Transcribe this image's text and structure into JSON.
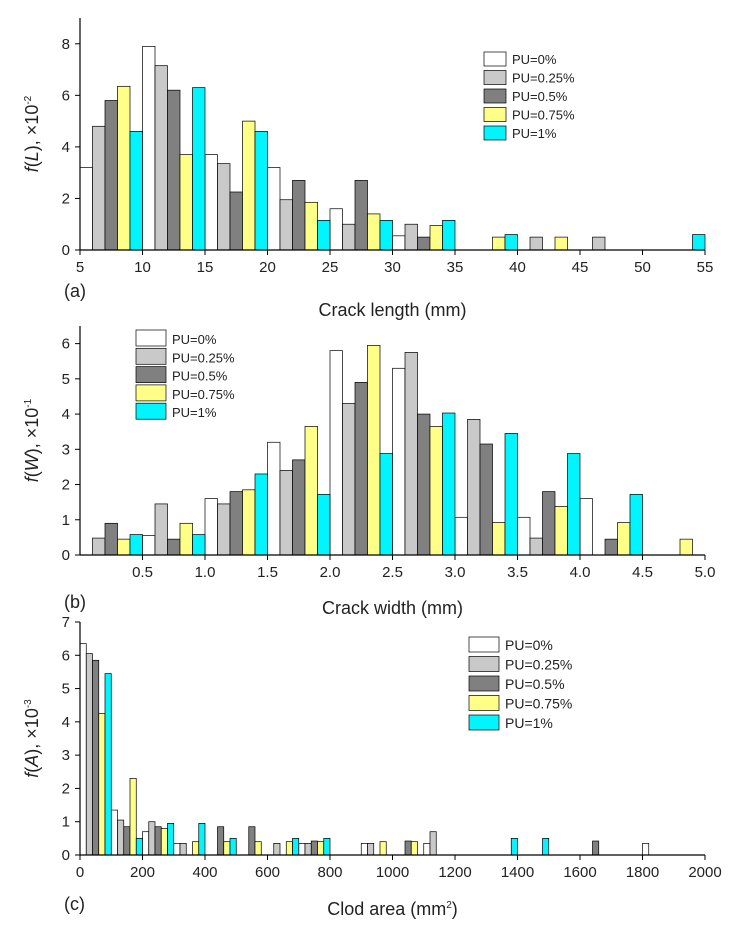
{
  "colors": {
    "PU=0%": "#ffffff",
    "PU=0.25%": "#c9c9c9",
    "PU=0.5%": "#808080",
    "PU=0.75%": "#ffff88",
    "PU=1%": "#00f5ff"
  },
  "chart_data": [
    {
      "type": "bar",
      "panel_label": "(a)",
      "xlabel": "Crack length (mm)",
      "ylabel_func": "f",
      "ylabel_var": "L",
      "ylabel_mult": "×10",
      "ylabel_exp": "-2",
      "xlim": [
        5,
        55
      ],
      "ylim": [
        0,
        9
      ],
      "xticks": [
        5,
        10,
        15,
        20,
        25,
        30,
        35,
        40,
        45,
        50,
        55
      ],
      "yticks": [
        0,
        2,
        4,
        6,
        8
      ],
      "legend_position": "top-right",
      "bin_width": 5,
      "categories": [
        7.5,
        12.5,
        17.5,
        22.5,
        27.5,
        32.5,
        37.5,
        42.5,
        47.5,
        52.5
      ],
      "series": [
        {
          "name": "PU=0%",
          "values": [
            3.2,
            7.9,
            3.7,
            3.2,
            1.6,
            0.55,
            0,
            0,
            0,
            0
          ]
        },
        {
          "name": "PU=0.25%",
          "values": [
            4.8,
            7.15,
            3.35,
            1.95,
            1.0,
            1.0,
            0,
            0.5,
            0.5,
            0
          ]
        },
        {
          "name": "PU=0.5%",
          "values": [
            5.8,
            6.2,
            2.25,
            2.7,
            2.7,
            0.5,
            0,
            0,
            0,
            0
          ]
        },
        {
          "name": "PU=0.75%",
          "values": [
            6.35,
            3.7,
            5.0,
            1.85,
            1.4,
            0.95,
            0.5,
            0.5,
            0,
            0
          ]
        },
        {
          "name": "PU=1%",
          "values": [
            4.6,
            6.3,
            4.6,
            1.15,
            1.15,
            1.15,
            0.6,
            0,
            0,
            0.6
          ]
        }
      ]
    },
    {
      "type": "bar",
      "panel_label": "(b)",
      "xlabel": "Crack width (mm)",
      "ylabel_func": "f",
      "ylabel_var": "W",
      "ylabel_mult": "×10",
      "ylabel_exp": "-1",
      "xlim": [
        0,
        5
      ],
      "ylim": [
        0,
        6.5
      ],
      "xticks": [
        0.5,
        1.0,
        1.5,
        2.0,
        2.5,
        3.0,
        3.5,
        4.0,
        4.5,
        5.0
      ],
      "yticks": [
        0,
        1,
        2,
        3,
        4,
        5,
        6
      ],
      "legend_position": "top-left",
      "bin_width": 0.5,
      "categories": [
        0.25,
        0.75,
        1.25,
        1.75,
        2.25,
        2.75,
        3.25,
        3.75,
        4.25,
        4.75
      ],
      "series": [
        {
          "name": "PU=0%",
          "values": [
            0,
            0.55,
            1.6,
            3.2,
            5.8,
            5.3,
            1.07,
            1.07,
            1.6,
            0
          ]
        },
        {
          "name": "PU=0.25%",
          "values": [
            0.48,
            1.45,
            1.45,
            2.4,
            4.3,
            5.75,
            3.85,
            0.48,
            0,
            0
          ]
        },
        {
          "name": "PU=0.5%",
          "values": [
            0.9,
            0.45,
            1.8,
            2.7,
            4.9,
            4.0,
            3.15,
            1.8,
            0.45,
            0
          ]
        },
        {
          "name": "PU=0.75%",
          "values": [
            0.45,
            0.9,
            1.85,
            3.65,
            5.95,
            3.65,
            0.92,
            1.38,
            0.92,
            0.45
          ]
        },
        {
          "name": "PU=1%",
          "values": [
            0.58,
            0.58,
            2.3,
            1.72,
            2.88,
            4.03,
            3.45,
            2.88,
            1.72,
            0
          ]
        }
      ]
    },
    {
      "type": "bar",
      "panel_label": "(c)",
      "xlabel": "Clod area (mm",
      "xlabel_exp": "2",
      "xlabel_tail": ")",
      "ylabel_func": "f",
      "ylabel_var": "A",
      "ylabel_mult": "×10",
      "ylabel_exp": "-3",
      "xlim": [
        0,
        2000
      ],
      "ylim": [
        0,
        7
      ],
      "xticks": [
        0,
        200,
        400,
        600,
        800,
        1000,
        1200,
        1400,
        1600,
        1800,
        2000
      ],
      "yticks": [
        0,
        1,
        2,
        3,
        4,
        5,
        6,
        7
      ],
      "legend_position": "top-right",
      "bin_width": 100,
      "categories": [
        50,
        150,
        250,
        350,
        450,
        550,
        650,
        750,
        850,
        950,
        1050,
        1150,
        1250,
        1350,
        1450,
        1550,
        1650,
        1750,
        1850,
        1950
      ],
      "series": [
        {
          "name": "PU=0%",
          "values": [
            6.35,
            1.35,
            0.7,
            0.35,
            0,
            0,
            0,
            0.35,
            0,
            0.35,
            0,
            0.35,
            0,
            0,
            0,
            0,
            0,
            0,
            0.35,
            0
          ]
        },
        {
          "name": "PU=0.25%",
          "values": [
            6.05,
            1.05,
            1.0,
            0.35,
            0,
            0,
            0.35,
            0.35,
            0,
            0.35,
            0,
            0.7,
            0,
            0,
            0,
            0,
            0,
            0,
            0,
            0
          ]
        },
        {
          "name": "PU=0.5%",
          "values": [
            5.85,
            0.85,
            0.85,
            0,
            0.85,
            0.85,
            0,
            0.42,
            0,
            0,
            0.42,
            0,
            0,
            0,
            0,
            0,
            0.42,
            0,
            0,
            0
          ]
        },
        {
          "name": "PU=0.75%",
          "values": [
            4.25,
            2.3,
            0.8,
            0.4,
            0.4,
            0.4,
            0.4,
            0.4,
            0,
            0.4,
            0.4,
            0,
            0,
            0,
            0,
            0,
            0,
            0,
            0,
            0
          ]
        },
        {
          "name": "PU=1%",
          "values": [
            5.45,
            0.5,
            0.95,
            0.95,
            0.5,
            0,
            0.5,
            0.5,
            0,
            0,
            0,
            0,
            0,
            0.5,
            0.5,
            0,
            0,
            0,
            0,
            0
          ]
        }
      ]
    }
  ]
}
